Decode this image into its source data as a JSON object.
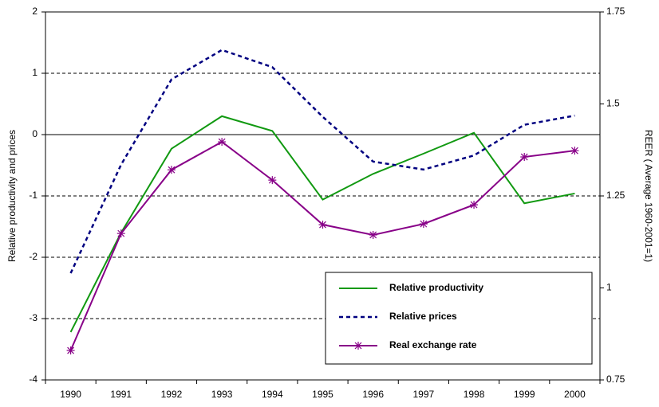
{
  "chart_data": {
    "type": "line",
    "categories": [
      "1990",
      "1991",
      "1992",
      "1993",
      "1994",
      "1995",
      "1996",
      "1997",
      "1998",
      "1999",
      "2000"
    ],
    "y_label": "Relative productivity and prices",
    "y2_label": "REER ( Average 1960-2001=1)",
    "ylim": [
      -4,
      2
    ],
    "yticks": [
      -4,
      -3,
      -2,
      -1,
      0,
      1,
      2
    ],
    "y2lim": [
      0.75,
      1.75
    ],
    "y2ticks": [
      0.75,
      1,
      1.25,
      1.5,
      1.75
    ],
    "grid": true,
    "series": [
      {
        "name": "Relative productivity",
        "color": "#119911",
        "linestyle": "solid",
        "marker": "none",
        "values": [
          -3.22,
          -1.6,
          -0.23,
          0.3,
          0.06,
          -1.06,
          -0.64,
          -0.31,
          0.03,
          -1.12,
          -0.96
        ]
      },
      {
        "name": "Relative prices",
        "color": "#000080",
        "linestyle": "dashed",
        "marker": "none",
        "values": [
          -2.26,
          -0.49,
          0.9,
          1.38,
          1.1,
          0.29,
          -0.44,
          -0.57,
          -0.34,
          0.16,
          0.31
        ]
      },
      {
        "name": "Real exchange rate",
        "color": "#880088",
        "linestyle": "solid",
        "marker": "asterisk",
        "axis": "y2",
        "values": [
          0.83,
          1.148,
          1.321,
          1.397,
          1.293,
          1.172,
          1.144,
          1.174,
          1.226,
          1.356,
          1.373
        ]
      }
    ]
  }
}
